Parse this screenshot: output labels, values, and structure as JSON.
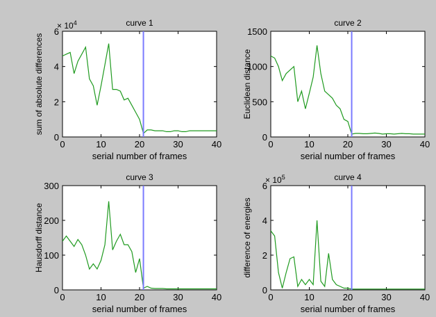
{
  "figure": {
    "background": "#c7c7c7"
  },
  "colors": {
    "series": "#1f9a1f",
    "marker": "#7a7aff",
    "axes_bg": "#ffffff",
    "axis": "#000000"
  },
  "chart_data": [
    {
      "type": "line",
      "title": "curve 1",
      "xlabel": "serial number of frames",
      "ylabel": "sum of absolute differences",
      "exponent_label": "× 10",
      "exponent_power": "4",
      "xlim": [
        0,
        40
      ],
      "ylim": [
        0,
        6
      ],
      "xticks": [
        0,
        10,
        20,
        30,
        40
      ],
      "yticks": [
        0,
        2,
        4,
        6
      ],
      "marker_x": 21,
      "x": [
        0,
        1,
        2,
        3,
        4,
        5,
        6,
        7,
        8,
        9,
        10,
        11,
        12,
        13,
        14,
        15,
        16,
        17,
        18,
        19,
        20,
        21,
        22,
        23,
        24,
        25,
        26,
        27,
        28,
        29,
        30,
        31,
        32,
        33,
        34,
        35,
        36,
        37,
        38,
        39,
        40
      ],
      "y": [
        4.6,
        4.7,
        4.8,
        3.6,
        4.3,
        4.7,
        5.1,
        3.3,
        2.9,
        1.8,
        2.9,
        4.1,
        5.3,
        2.7,
        2.7,
        2.6,
        2.1,
        2.2,
        1.8,
        1.4,
        1.0,
        0.2,
        0.4,
        0.4,
        0.35,
        0.35,
        0.35,
        0.3,
        0.3,
        0.35,
        0.35,
        0.3,
        0.3,
        0.35,
        0.35,
        0.35,
        0.35,
        0.35,
        0.35,
        0.35,
        0.35
      ]
    },
    {
      "type": "line",
      "title": "curve 2",
      "xlabel": "serial number of frames",
      "ylabel": "Euclidean distance",
      "exponent_label": "",
      "exponent_power": "",
      "xlim": [
        0,
        40
      ],
      "ylim": [
        0,
        1500
      ],
      "xticks": [
        0,
        10,
        20,
        30,
        40
      ],
      "yticks": [
        0,
        500,
        1000,
        1500
      ],
      "marker_x": 21,
      "x": [
        0,
        1,
        2,
        3,
        4,
        5,
        6,
        7,
        8,
        9,
        10,
        11,
        12,
        13,
        14,
        15,
        16,
        17,
        18,
        19,
        20,
        21,
        22,
        23,
        24,
        25,
        26,
        27,
        28,
        29,
        30,
        31,
        32,
        33,
        34,
        35,
        36,
        37,
        38,
        39,
        40
      ],
      "y": [
        1150,
        1120,
        1000,
        800,
        900,
        950,
        1000,
        500,
        650,
        400,
        620,
        850,
        1300,
        900,
        650,
        600,
        550,
        450,
        400,
        250,
        220,
        40,
        50,
        50,
        45,
        45,
        50,
        55,
        50,
        40,
        45,
        45,
        40,
        45,
        50,
        45,
        45,
        40,
        40,
        40,
        40
      ]
    },
    {
      "type": "line",
      "title": "curve 3",
      "xlabel": "serial number of frames",
      "ylabel": "Hausdorff distance",
      "exponent_label": "",
      "exponent_power": "",
      "xlim": [
        0,
        40
      ],
      "ylim": [
        0,
        300
      ],
      "xticks": [
        0,
        10,
        20,
        30,
        40
      ],
      "yticks": [
        0,
        100,
        200,
        300
      ],
      "marker_x": 21,
      "x": [
        0,
        1,
        2,
        3,
        4,
        5,
        6,
        7,
        8,
        9,
        10,
        11,
        12,
        13,
        14,
        15,
        16,
        17,
        18,
        19,
        20,
        21,
        22,
        23,
        24,
        25,
        26,
        27,
        28,
        29,
        30,
        31,
        32,
        33,
        34,
        35,
        36,
        37,
        38,
        39,
        40
      ],
      "y": [
        140,
        155,
        140,
        125,
        145,
        130,
        100,
        60,
        75,
        60,
        85,
        130,
        255,
        115,
        140,
        160,
        130,
        130,
        110,
        50,
        90,
        5,
        10,
        5,
        4,
        4,
        4,
        3,
        3,
        3,
        3,
        3,
        3,
        3,
        3,
        3,
        3,
        3,
        3,
        3,
        3
      ]
    },
    {
      "type": "line",
      "title": "curve 4",
      "xlabel": "serial number of frames",
      "ylabel": "difference of energies",
      "exponent_label": "× 10",
      "exponent_power": "5",
      "xlim": [
        0,
        40
      ],
      "ylim": [
        0,
        6
      ],
      "xticks": [
        0,
        10,
        20,
        30,
        40
      ],
      "yticks": [
        0,
        2,
        4,
        6
      ],
      "marker_x": 21,
      "x": [
        0,
        1,
        2,
        3,
        4,
        5,
        6,
        7,
        8,
        9,
        10,
        11,
        12,
        13,
        14,
        15,
        16,
        17,
        18,
        19,
        20,
        21,
        22,
        23,
        24,
        25,
        26,
        27,
        28,
        29,
        30,
        31,
        32,
        33,
        34,
        35,
        36,
        37,
        38,
        39,
        40
      ],
      "y": [
        3.4,
        3.1,
        1.0,
        0.1,
        1.0,
        1.8,
        1.9,
        0.2,
        0.6,
        0.3,
        0.6,
        0.3,
        4.0,
        0.5,
        0.2,
        2.1,
        0.6,
        0.3,
        0.2,
        0.1,
        0.1,
        0.05,
        0.05,
        0.05,
        0.05,
        0.05,
        0.05,
        0.05,
        0.05,
        0.05,
        0.05,
        0.05,
        0.05,
        0.05,
        0.05,
        0.05,
        0.05,
        0.05,
        0.05,
        0.05,
        0.05
      ]
    }
  ]
}
